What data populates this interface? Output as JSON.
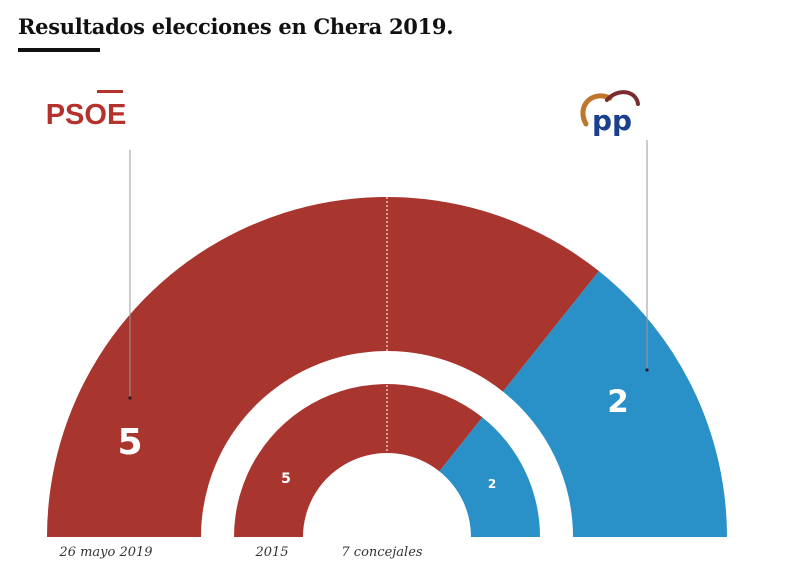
{
  "title": "Resultados elecciones en Chera 2019.",
  "chart_data": {
    "type": "pie",
    "subtype": "semicircle-parliament",
    "rings": [
      {
        "name": "26 mayo 2019",
        "series": [
          {
            "name": "PSOE",
            "value": 5,
            "color": "#a9352f"
          },
          {
            "name": "PP",
            "value": 2,
            "color": "#2a91c8"
          }
        ]
      },
      {
        "name": "2015",
        "series": [
          {
            "name": "PSOE",
            "value": 5,
            "color": "#a9352f"
          },
          {
            "name": "PP",
            "value": 2,
            "color": "#2a91c8"
          }
        ]
      }
    ],
    "total_seats": 7,
    "total_label": "7 concejales",
    "majority_line": true,
    "labels": {
      "outer_ring": "26 mayo 2019",
      "inner_ring": "2015"
    },
    "logos": [
      {
        "party": "PSOE",
        "text": "PSOE",
        "color": "#b5322c"
      },
      {
        "party": "PP",
        "text": "pp",
        "color": "#1a3f8c",
        "arc_colors": [
          "#c0752c",
          "#7b2a30"
        ]
      }
    ]
  }
}
